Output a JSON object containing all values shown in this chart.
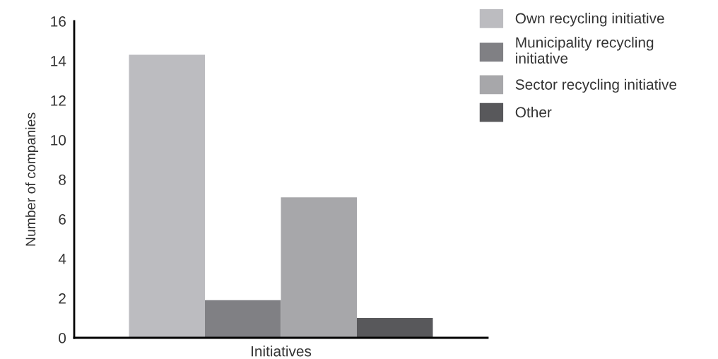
{
  "chart_data": {
    "type": "bar",
    "ylabel": "Number of companies",
    "categories": [
      "Initiatives"
    ],
    "series": [
      {
        "name": "Own recycling initiative",
        "color": "#bcbcc0",
        "values": [
          14.3
        ]
      },
      {
        "name": "Municipality recycling\ninitiative",
        "color": "#808084",
        "values": [
          1.9
        ]
      },
      {
        "name": "Sector recycling initiative",
        "color": "#a7a7aa",
        "values": [
          7.1
        ]
      },
      {
        "name": "Other",
        "color": "#58585b",
        "values": [
          1.0
        ]
      }
    ],
    "ylim": [
      0,
      16
    ],
    "yticks": [
      0,
      2,
      4,
      6,
      8,
      10,
      12,
      14,
      16
    ],
    "grid": false,
    "legend": "top right"
  }
}
